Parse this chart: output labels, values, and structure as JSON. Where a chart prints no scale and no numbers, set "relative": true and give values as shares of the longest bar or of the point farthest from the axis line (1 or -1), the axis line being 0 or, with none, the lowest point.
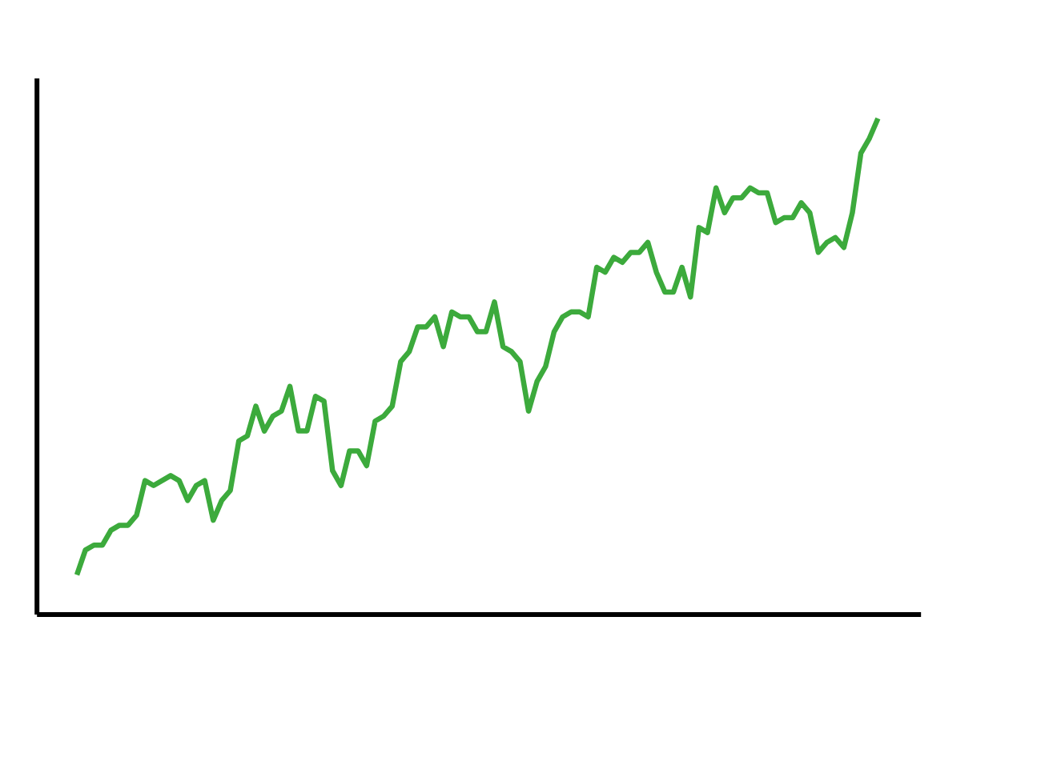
{
  "chart_data": {
    "type": "line",
    "relative": true,
    "color": "#3caa3c",
    "line_style": "solid",
    "marker": "none",
    "categories": [
      null,
      null,
      null,
      null,
      null,
      null,
      null,
      null,
      null,
      null,
      null,
      null,
      null,
      null,
      null,
      null,
      null,
      null,
      null,
      null,
      null,
      null,
      null,
      null,
      null,
      null,
      null,
      null,
      null,
      null,
      null,
      null,
      null,
      null,
      null,
      null,
      null,
      null,
      null,
      null,
      null,
      null,
      null,
      null,
      null,
      null,
      null,
      null,
      null,
      null,
      null,
      null,
      null,
      null,
      null,
      null,
      null,
      null,
      null,
      null,
      null,
      null,
      null,
      null,
      null,
      null,
      null,
      null,
      null,
      null,
      null,
      null,
      null,
      null,
      null,
      null,
      null,
      null,
      null,
      null,
      null,
      null,
      null,
      null,
      null,
      null,
      null,
      null,
      null,
      null,
      null,
      null,
      null,
      null,
      null
    ],
    "values": [
      0.08,
      0.13,
      0.14,
      0.14,
      0.17,
      0.18,
      0.18,
      0.2,
      0.27,
      0.26,
      0.27,
      0.28,
      0.27,
      0.23,
      0.26,
      0.27,
      0.19,
      0.23,
      0.25,
      0.35,
      0.36,
      0.42,
      0.37,
      0.4,
      0.41,
      0.46,
      0.37,
      0.37,
      0.44,
      0.43,
      0.29,
      0.26,
      0.33,
      0.33,
      0.3,
      0.39,
      0.4,
      0.42,
      0.51,
      0.53,
      0.58,
      0.58,
      0.6,
      0.54,
      0.61,
      0.6,
      0.6,
      0.57,
      0.57,
      0.63,
      0.54,
      0.53,
      0.51,
      0.41,
      0.47,
      0.5,
      0.57,
      0.6,
      0.61,
      0.61,
      0.6,
      0.7,
      0.69,
      0.72,
      0.71,
      0.73,
      0.73,
      0.75,
      0.69,
      0.65,
      0.65,
      0.7,
      0.64,
      0.78,
      0.77,
      0.86,
      0.81,
      0.84,
      0.84,
      0.86,
      0.85,
      0.85,
      0.79,
      0.8,
      0.8,
      0.83,
      0.81,
      0.73,
      0.75,
      0.76,
      0.74,
      0.81,
      0.93,
      0.96,
      1
    ]
  }
}
